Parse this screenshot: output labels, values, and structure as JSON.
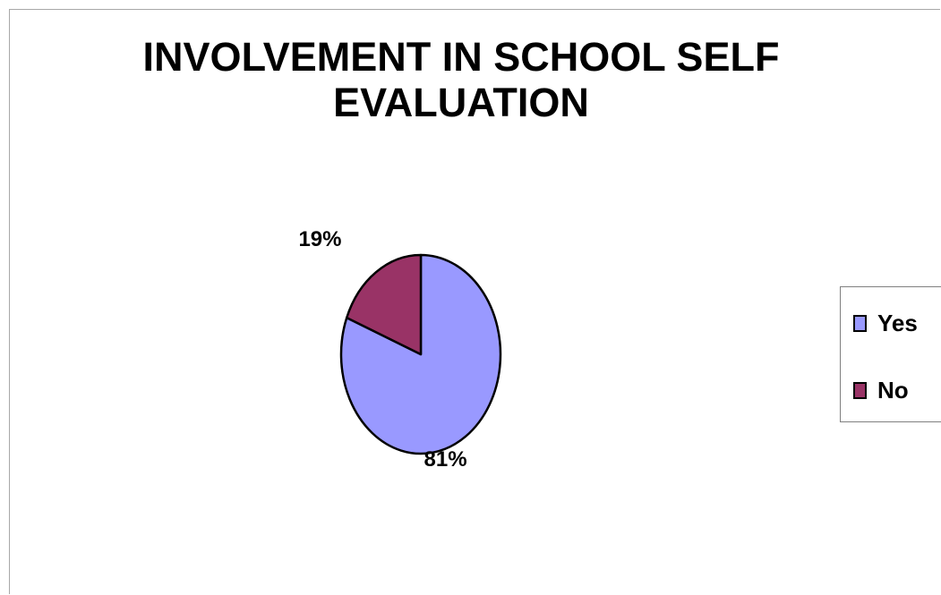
{
  "chart_data": {
    "type": "pie",
    "title": "INVOLVEMENT IN SCHOOL SELF EVALUATION",
    "title_lines": [
      "INVOLVEMENT IN SCHOOL SELF",
      "EVALUATION"
    ],
    "categories": [
      "Yes",
      "No"
    ],
    "values": [
      81,
      19
    ],
    "data_labels": [
      "81%",
      "19%"
    ],
    "colors": [
      "#9999ff",
      "#993366"
    ],
    "legend_position": "right"
  },
  "legend": {
    "items": [
      {
        "label": "Yes",
        "color": "#9999ff"
      },
      {
        "label": "No",
        "color": "#993366"
      }
    ]
  }
}
